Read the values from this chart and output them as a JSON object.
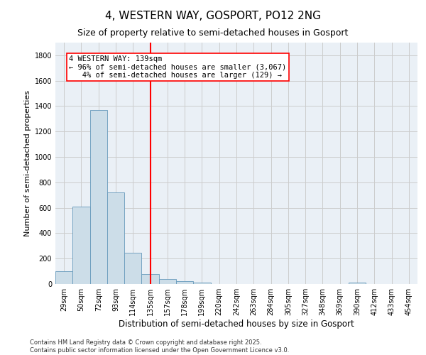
{
  "title": "4, WESTERN WAY, GOSPORT, PO12 2NG",
  "subtitle": "Size of property relative to semi-detached houses in Gosport",
  "xlabel": "Distribution of semi-detached houses by size in Gosport",
  "ylabel": "Number of semi-detached properties",
  "bar_labels": [
    "29sqm",
    "50sqm",
    "72sqm",
    "93sqm",
    "114sqm",
    "135sqm",
    "157sqm",
    "178sqm",
    "199sqm",
    "220sqm",
    "242sqm",
    "263sqm",
    "284sqm",
    "305sqm",
    "327sqm",
    "348sqm",
    "369sqm",
    "390sqm",
    "412sqm",
    "433sqm",
    "454sqm"
  ],
  "bar_values": [
    100,
    610,
    1370,
    720,
    245,
    80,
    40,
    20,
    10,
    0,
    0,
    0,
    0,
    0,
    0,
    0,
    0,
    10,
    0,
    0,
    0
  ],
  "bar_color": "#ccdde8",
  "bar_edge_color": "#6699bb",
  "vline_x_index": 5,
  "vline_color": "red",
  "annotation_text": "4 WESTERN WAY: 139sqm\n← 96% of semi-detached houses are smaller (3,067)\n   4% of semi-detached houses are larger (129) →",
  "annotation_box_color": "white",
  "annotation_box_edge_color": "red",
  "ylim": [
    0,
    1900
  ],
  "yticks": [
    0,
    200,
    400,
    600,
    800,
    1000,
    1200,
    1400,
    1600,
    1800
  ],
  "grid_color": "#cccccc",
  "background_color": "#eaf0f6",
  "footer_text": "Contains HM Land Registry data © Crown copyright and database right 2025.\nContains public sector information licensed under the Open Government Licence v3.0.",
  "title_fontsize": 11,
  "subtitle_fontsize": 9,
  "xlabel_fontsize": 8.5,
  "ylabel_fontsize": 8,
  "tick_fontsize": 7,
  "annotation_fontsize": 7.5,
  "footer_fontsize": 6
}
